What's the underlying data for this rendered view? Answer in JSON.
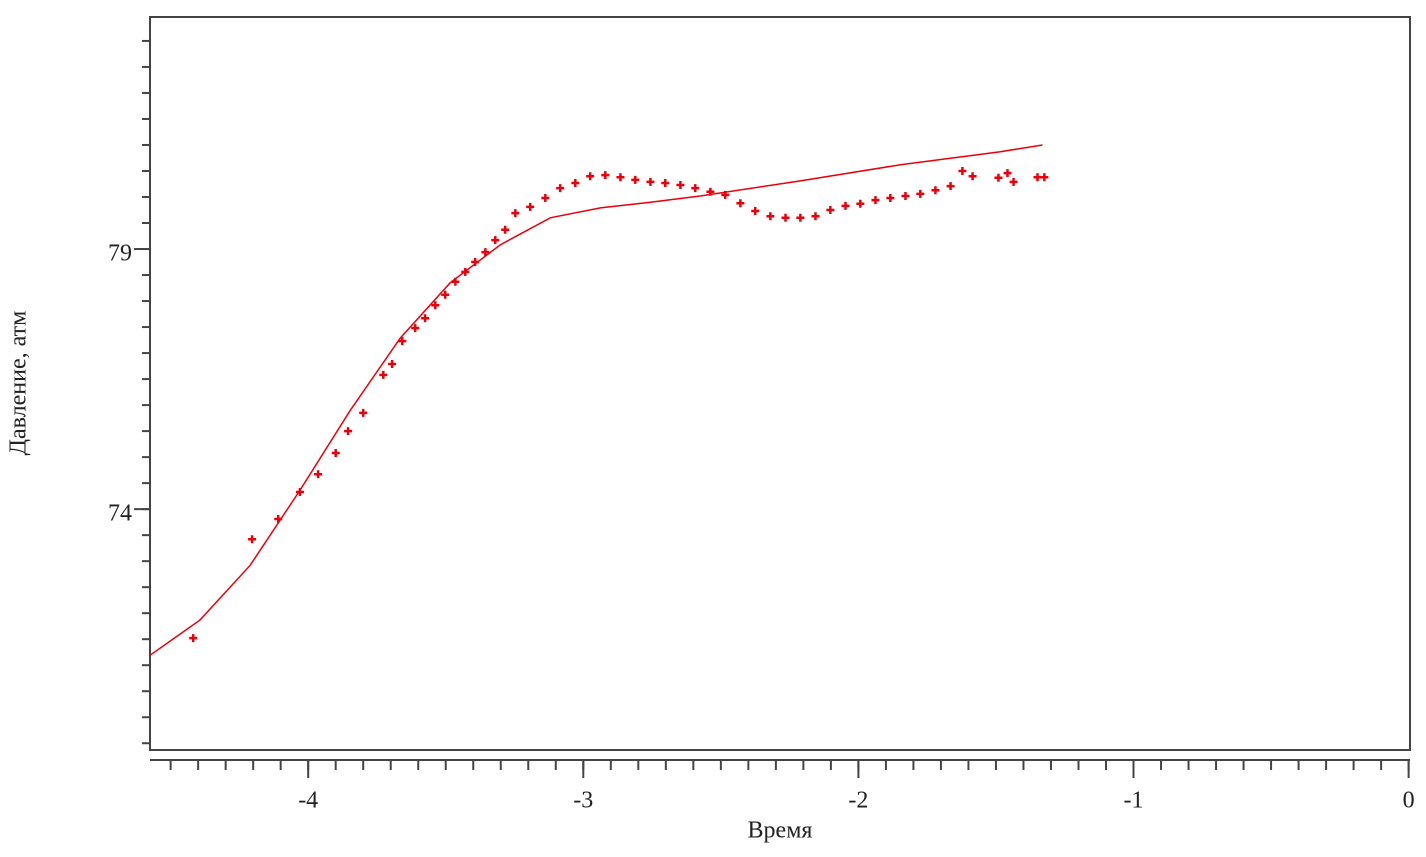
{
  "chart_data": {
    "type": "scatter",
    "x_label": "Время",
    "y_label": "Давление, атм",
    "xlim": [
      -4.575,
      0.005
    ],
    "ylim": [
      69.37,
      83.46
    ],
    "xticks": [
      -4,
      -3,
      -2,
      -1,
      0
    ],
    "yticks": [
      74,
      79
    ],
    "color": "#e8000b",
    "series": [
      {
        "type": "scatter",
        "x": [
          -4.418,
          -4.204,
          -4.109,
          -4.03,
          -3.964,
          -3.9,
          -3.855,
          -3.8,
          -3.727,
          -3.695,
          -3.658,
          -3.611,
          -3.575,
          -3.538,
          -3.502,
          -3.465,
          -3.429,
          -3.393,
          -3.356,
          -3.32,
          -3.284,
          -3.247,
          -3.193,
          -3.138,
          -3.084,
          -3.029,
          -2.975,
          -2.92,
          -2.865,
          -2.811,
          -2.756,
          -2.702,
          -2.647,
          -2.593,
          -2.538,
          -2.484,
          -2.429,
          -2.375,
          -2.32,
          -2.265,
          -2.211,
          -2.156,
          -2.102,
          -2.047,
          -1.993,
          -1.938,
          -1.884,
          -1.829,
          -1.775,
          -1.72,
          -1.665,
          -1.622,
          -1.585,
          -1.491,
          -1.458,
          -1.436,
          -1.349,
          -1.324
        ],
        "values": [
          71.52,
          73.42,
          73.81,
          74.33,
          74.67,
          75.08,
          75.5,
          75.85,
          76.58,
          76.79,
          77.23,
          77.48,
          77.67,
          77.92,
          78.12,
          78.37,
          78.56,
          78.75,
          78.94,
          79.17,
          79.37,
          79.69,
          79.81,
          79.98,
          80.17,
          80.27,
          80.4,
          80.42,
          80.38,
          80.33,
          80.29,
          80.27,
          80.23,
          80.17,
          80.1,
          80.04,
          79.88,
          79.73,
          79.63,
          79.6,
          79.6,
          79.63,
          79.75,
          79.83,
          79.87,
          79.94,
          79.98,
          80.02,
          80.06,
          80.13,
          80.21,
          80.5,
          80.4,
          80.37,
          80.46,
          80.29,
          80.38,
          80.38
        ]
      },
      {
        "type": "line",
        "x": [
          -4.575,
          -4.393,
          -4.211,
          -4.029,
          -3.847,
          -3.665,
          -3.484,
          -3.302,
          -3.12,
          -2.938,
          -2.756,
          -2.575,
          -2.211,
          -1.847,
          -1.484,
          -1.331
        ],
        "values": [
          71.19,
          71.87,
          72.92,
          74.37,
          75.9,
          77.29,
          78.35,
          79.08,
          79.6,
          79.79,
          79.9,
          80.02,
          80.31,
          80.62,
          80.87,
          81.0
        ]
      }
    ]
  }
}
